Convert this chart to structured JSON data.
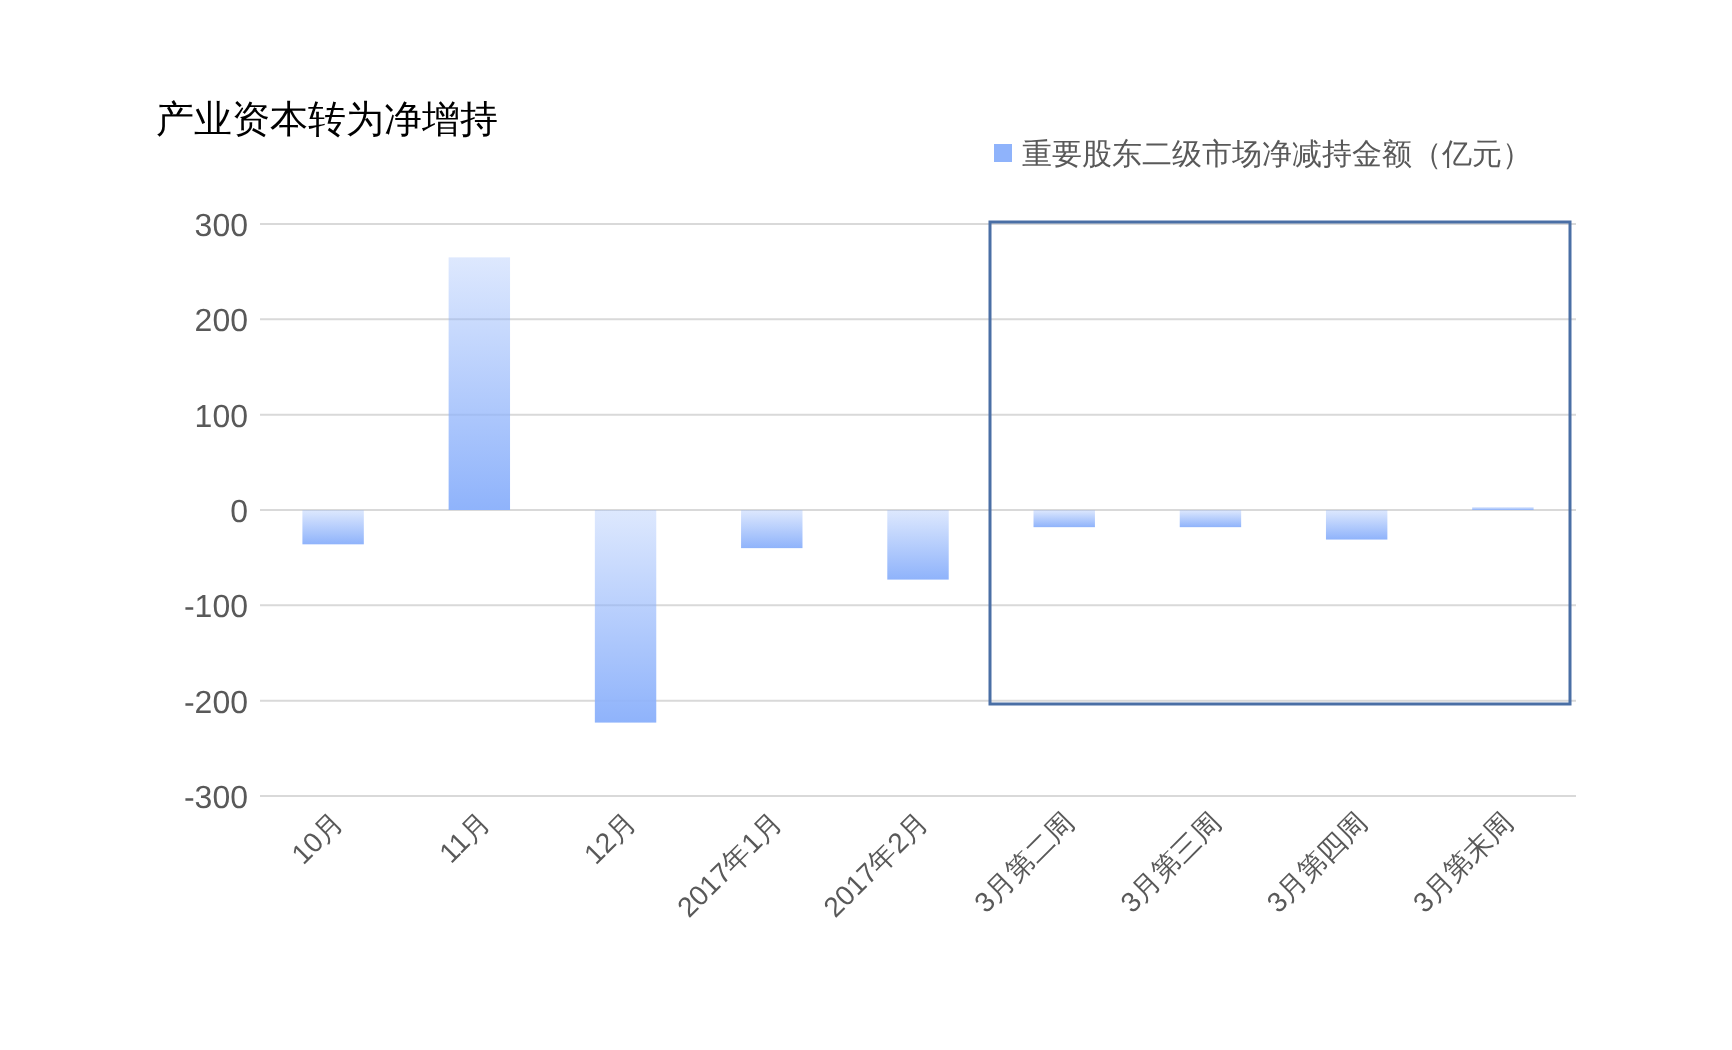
{
  "chart_data": {
    "type": "bar",
    "title": "产业资本转为净增持",
    "categories": [
      "10月",
      "11月",
      "12月",
      "2017年1月",
      "2017年2月",
      "3月第二周",
      "3月第三周",
      "3月第四周",
      "3月第末周"
    ],
    "series": [
      {
        "name": "重要股东二级市场净减持金额（亿元）",
        "color": "#8fb3fb",
        "values": [
          -36,
          265,
          -223,
          -40,
          -73,
          -18,
          -18,
          -31,
          3
        ]
      }
    ],
    "ylim": [
      -300,
      300
    ],
    "yticks": [
      -300,
      -200,
      -100,
      0,
      100,
      200,
      300
    ],
    "grid": "y",
    "legend": "top right"
  }
}
